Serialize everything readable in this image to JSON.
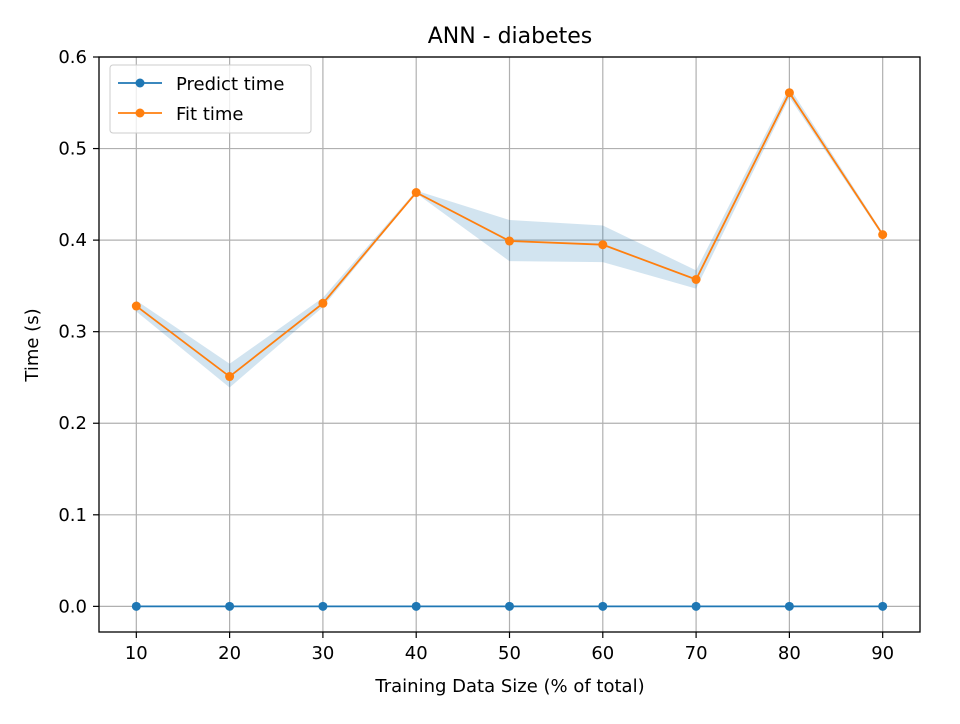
{
  "chart_data": {
    "type": "line",
    "title": "ANN - diabetes",
    "xlabel": "Training Data Size (% of total)",
    "ylabel": "Time (s)",
    "x": [
      10,
      20,
      30,
      40,
      50,
      60,
      70,
      80,
      90
    ],
    "xlim": [
      6,
      94
    ],
    "ylim": [
      -0.028,
      0.6
    ],
    "xticks": [
      "10",
      "20",
      "30",
      "40",
      "50",
      "60",
      "70",
      "80",
      "90"
    ],
    "yticks": [
      "0.0",
      "0.1",
      "0.2",
      "0.3",
      "0.4",
      "0.5",
      "0.6"
    ],
    "grid": true,
    "legend_position": "upper-left",
    "series": [
      {
        "name": "Predict time",
        "color": "#1f77b4",
        "values": [
          0.0,
          0.0,
          0.0,
          0.0,
          0.0,
          0.0,
          0.0,
          0.0,
          0.0
        ]
      },
      {
        "name": "Fit time",
        "color": "#ff7f0e",
        "values": [
          0.328,
          0.251,
          0.331,
          0.452,
          0.399,
          0.395,
          0.357,
          0.561,
          0.406
        ],
        "band_lower": [
          0.322,
          0.239,
          0.327,
          0.451,
          0.377,
          0.376,
          0.347,
          0.556,
          0.404
        ],
        "band_upper": [
          0.334,
          0.265,
          0.337,
          0.454,
          0.422,
          0.416,
          0.367,
          0.567,
          0.408
        ],
        "band_color": "#1f77b4"
      }
    ]
  }
}
